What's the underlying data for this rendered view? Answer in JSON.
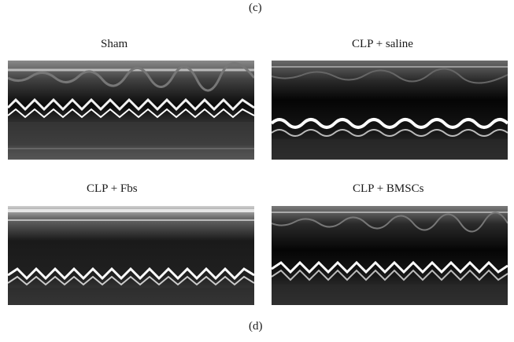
{
  "figure": {
    "top_caption": "(c)",
    "bottom_caption": "(d)",
    "panels": [
      {
        "title": "Sham",
        "description": "M-mode echocardiogram"
      },
      {
        "title": "CLP + saline",
        "description": "M-mode echocardiogram"
      },
      {
        "title": "CLP + Fbs",
        "description": "M-mode echocardiogram"
      },
      {
        "title": "CLP + BMSCs",
        "description": "M-mode echocardiogram"
      }
    ]
  }
}
